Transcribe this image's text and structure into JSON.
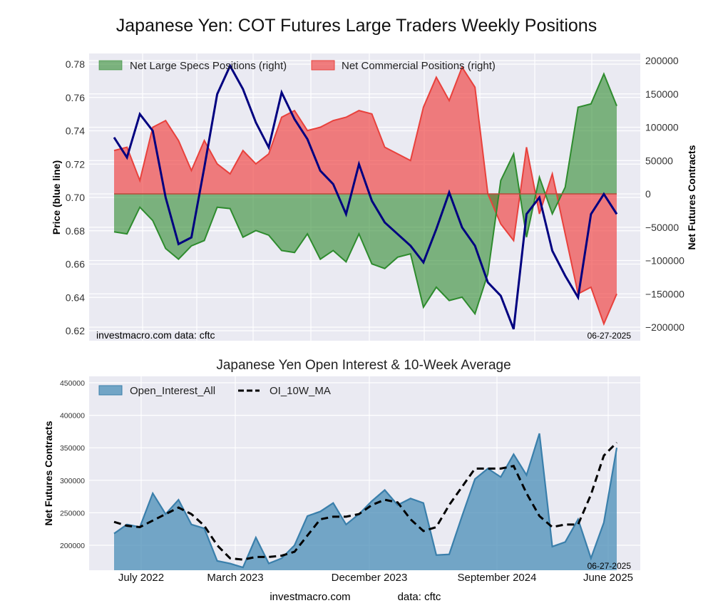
{
  "main_title": "Japanese Yen: COT Futures Large Traders Weekly Positions",
  "footer": {
    "site": "investmacro.com",
    "source": "data: cftc"
  },
  "chart_data": [
    {
      "type": "area",
      "title": "Japanese Yen: COT Futures Large Traders Weekly Positions",
      "xlabel": "",
      "ylabel_left": "Price (blue line)",
      "ylabel_right": "Net Futures Contracts",
      "ylim_left": [
        0.615,
        0.785
      ],
      "ylim_right": [
        -210000,
        210000
      ],
      "yticks_left": [
        "0.62",
        "0.64",
        "0.66",
        "0.68",
        "0.70",
        "0.72",
        "0.74",
        "0.76",
        "0.78"
      ],
      "yticks_right": [
        "200000",
        "150000",
        "100000",
        "50000",
        "0",
        "−50000",
        "−100000",
        "−150000",
        "−200000"
      ],
      "grid": true,
      "legend": {
        "placement": "top-left",
        "entries": [
          "Net Large Specs Positions (right)",
          "Net Commercial Positions (right)"
        ]
      },
      "annotations": {
        "left": "investmacro.com    data: cftc",
        "right": "06-27-2025"
      },
      "x_range": [
        "2022-06",
        "2025-06-27"
      ],
      "x": [
        0,
        4,
        8,
        12,
        16,
        20,
        24,
        28,
        32,
        36,
        40,
        44,
        48,
        52,
        56,
        60,
        64,
        68,
        72,
        76,
        80,
        84,
        88,
        92,
        96,
        100,
        104,
        108,
        112,
        116,
        120,
        124,
        128,
        132,
        136,
        140,
        144,
        148,
        152,
        156
      ],
      "series": [
        {
          "name": "Price",
          "axis": "left",
          "color": "#000080",
          "values": [
            0.736,
            0.724,
            0.75,
            0.74,
            0.7,
            0.672,
            0.676,
            0.718,
            0.762,
            0.779,
            0.765,
            0.745,
            0.73,
            0.763,
            0.747,
            0.735,
            0.716,
            0.708,
            0.69,
            0.72,
            0.698,
            0.685,
            0.678,
            0.671,
            0.661,
            0.681,
            0.703,
            0.682,
            0.671,
            0.649,
            0.641,
            0.621,
            0.69,
            0.7,
            0.668,
            0.653,
            0.64,
            0.69,
            0.702,
            0.69
          ]
        },
        {
          "name": "Net Large Specs Positions (right)",
          "axis": "right",
          "color": "#2e8b2e",
          "values": [
            -57000,
            -60000,
            -20000,
            -40000,
            -82000,
            -98000,
            -78000,
            -70000,
            -20000,
            -22000,
            -65000,
            -55000,
            -62000,
            -85000,
            -88000,
            -60000,
            -98000,
            -85000,
            -102000,
            -60000,
            -105000,
            -112000,
            -95000,
            -90000,
            -170000,
            -140000,
            -160000,
            -155000,
            -180000,
            -120000,
            20000,
            60000,
            -65000,
            25000,
            -30000,
            10000,
            130000,
            135000,
            180000,
            132000
          ]
        },
        {
          "name": "Net Commercial Positions (right)",
          "axis": "right",
          "color": "#e8413c",
          "values": [
            65000,
            70000,
            20000,
            100000,
            110000,
            80000,
            35000,
            80000,
            45000,
            30000,
            65000,
            45000,
            60000,
            115000,
            125000,
            95000,
            100000,
            110000,
            115000,
            125000,
            120000,
            70000,
            60000,
            50000,
            130000,
            175000,
            140000,
            190000,
            160000,
            0,
            -45000,
            -70000,
            70000,
            -30000,
            30000,
            -60000,
            -150000,
            -140000,
            -195000,
            -150000
          ]
        }
      ]
    },
    {
      "type": "area",
      "title": "Japanese Yen Open Interest & 10-Week Average",
      "xlabel": "",
      "ylabel": "Net Futures Contracts",
      "ylim": [
        160000,
        460000
      ],
      "yticks": [
        "450000",
        "400000",
        "350000",
        "300000",
        "250000",
        "200000"
      ],
      "xticks": [
        "July 2022",
        "March 2023",
        "December 2023",
        "September 2024",
        "June 2025"
      ],
      "grid": true,
      "legend": {
        "placement": "top-left",
        "entries": [
          "Open_Interest_All",
          "OI_10W_MA"
        ]
      },
      "annotations": {
        "right": "06-27-2025"
      },
      "x": [
        0,
        4,
        8,
        12,
        16,
        20,
        24,
        28,
        32,
        36,
        40,
        44,
        48,
        52,
        56,
        60,
        64,
        68,
        72,
        76,
        80,
        84,
        88,
        92,
        96,
        100,
        104,
        108,
        112,
        116,
        120,
        124,
        128,
        132,
        136,
        140,
        144,
        148,
        152,
        156
      ],
      "series": [
        {
          "name": "Open_Interest_All",
          "color": "#4a8db7",
          "values": [
            218000,
            232000,
            228000,
            280000,
            248000,
            270000,
            232000,
            226000,
            176000,
            172000,
            166000,
            212000,
            172000,
            180000,
            200000,
            245000,
            252000,
            265000,
            232000,
            248000,
            268000,
            285000,
            262000,
            272000,
            265000,
            185000,
            186000,
            245000,
            302000,
            318000,
            305000,
            340000,
            308000,
            372000,
            198000,
            205000,
            240000,
            180000,
            235000,
            350000
          ]
        },
        {
          "name": "OI_10W_MA",
          "color": "#000000",
          "dash": true,
          "values": [
            236000,
            230000,
            228000,
            238000,
            248000,
            258000,
            248000,
            230000,
            200000,
            180000,
            178000,
            182000,
            182000,
            184000,
            190000,
            215000,
            240000,
            244000,
            244000,
            248000,
            262000,
            270000,
            266000,
            240000,
            222000,
            228000,
            262000,
            290000,
            318000,
            318000,
            318000,
            322000,
            280000,
            245000,
            228000,
            232000,
            232000,
            278000,
            338000,
            358000
          ]
        }
      ]
    }
  ]
}
